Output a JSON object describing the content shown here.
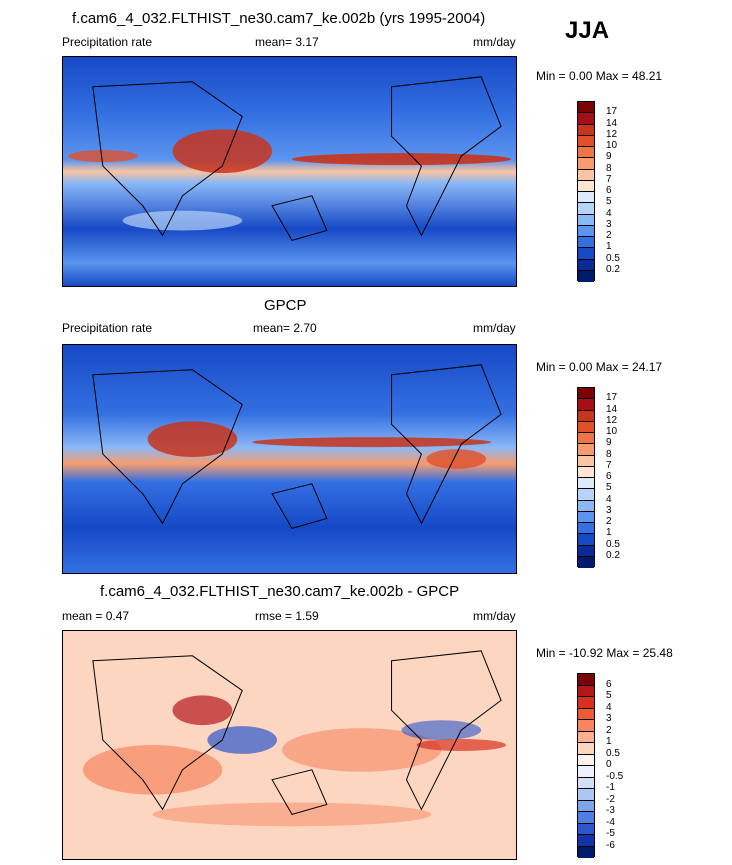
{
  "season": "JJA",
  "panels": [
    {
      "title": "f.cam6_4_032.FLTHIST_ne30.cam7_ke.002b (yrs 1995-2004)",
      "left_label": "Precipitation rate",
      "mean_text": "mean=   3.17",
      "units": "mm/day",
      "minmax": "Min =   0.00 Max =  48.21",
      "colorbar_labels": [
        "17",
        "14",
        "12",
        "10",
        "9",
        "8",
        "7",
        "6",
        "5",
        "4",
        "3",
        "2",
        "1",
        "0.5",
        "0.2"
      ]
    },
    {
      "title": "GPCP",
      "left_label": "Precipitation rate",
      "mean_text": "mean=   2.70",
      "units": "mm/day",
      "minmax": "Min =   0.00 Max =  24.17",
      "colorbar_labels": [
        "17",
        "14",
        "12",
        "10",
        "9",
        "8",
        "7",
        "6",
        "5",
        "4",
        "3",
        "2",
        "1",
        "0.5",
        "0.2"
      ]
    },
    {
      "title": "f.cam6_4_032.FLTHIST_ne30.cam7_ke.002b - GPCP",
      "left_label": "mean =   0.47",
      "mean_text": "rmse =   1.59",
      "units": "mm/day",
      "minmax": "Min = -10.92 Max =  25.48",
      "colorbar_labels": [
        "6",
        "5",
        "4",
        "3",
        "2",
        "1",
        "0.5",
        "0",
        "-0.5",
        "-1",
        "-2",
        "-3",
        "-4",
        "-5",
        "-6"
      ]
    }
  ],
  "colors": {
    "precip": [
      "#7a0403",
      "#a50f15",
      "#c8341c",
      "#e0502a",
      "#ef7446",
      "#f79c70",
      "#fbc4a2",
      "#fde5d2",
      "#dbe9fb",
      "#b6d3fa",
      "#8bb8f6",
      "#5c95ee",
      "#3470e2",
      "#1649c6",
      "#0a2a9a",
      "#001a6e"
    ],
    "diff": [
      "#7a0403",
      "#b2171a",
      "#d7301f",
      "#ee5a36",
      "#f7865e",
      "#fbb08f",
      "#fdd6c2",
      "#fdf3ec",
      "#eef2fb",
      "#d1dff7",
      "#aec6f2",
      "#7ea5ea",
      "#4f7fe0",
      "#2a57cc",
      "#1234a8",
      "#001a6e"
    ]
  }
}
